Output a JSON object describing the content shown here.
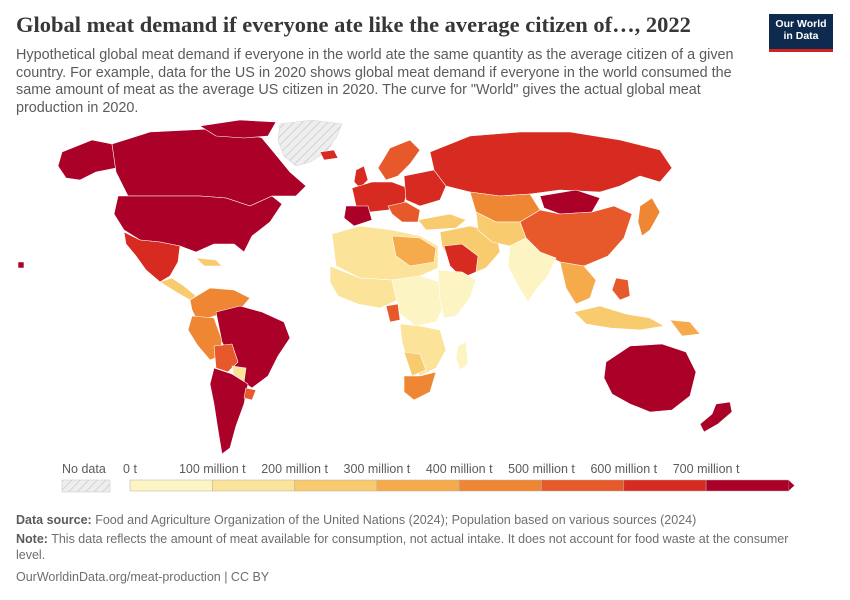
{
  "header": {
    "title": "Global meat demand if everyone ate like the average citizen of…, 2022",
    "subtitle": "Hypothetical global meat demand if everyone in the world ate the same quantity as the average citizen of a given country. For example, data for the US in 2020 shows global meat demand if everyone in the world consumed the same amount of meat as the average US citizen in 2020. The curve for \"World\" gives the actual global meat production in 2020.",
    "logo_line1": "Our World",
    "logo_line2": "in Data"
  },
  "legend": {
    "no_data_label": "No data",
    "bins": [
      {
        "label": "0 t",
        "color": "#fdf4c4"
      },
      {
        "label": "100 million t",
        "color": "#fbe39a"
      },
      {
        "label": "200 million t",
        "color": "#f8cb6f"
      },
      {
        "label": "300 million t",
        "color": "#f5aa4b"
      },
      {
        "label": "400 million t",
        "color": "#ef8633"
      },
      {
        "label": "500 million t",
        "color": "#e7592a"
      },
      {
        "label": "600 million t",
        "color": "#d72a20"
      },
      {
        "label": "700 million t",
        "color": "#ab0028"
      }
    ]
  },
  "colors": {
    "c1": "#fdf4c4",
    "c2": "#fbe39a",
    "c3": "#f8cb6f",
    "c4": "#f5aa4b",
    "c5": "#ef8633",
    "c6": "#e7592a",
    "c7": "#d72a20",
    "c8": "#ab0028",
    "nodata": "#e8e8e8",
    "border": "#ffffff"
  },
  "footer": {
    "source_label": "Data source:",
    "source_text": "Food and Agriculture Organization of the United Nations (2024); Population based on various sources (2024)",
    "note_label": "Note:",
    "note_text": "This data reflects the amount of meat available for consumption, not actual intake. It does not account for food waste at the consumer level.",
    "link_text": "OurWorldinData.org/meat-production | CC BY"
  }
}
